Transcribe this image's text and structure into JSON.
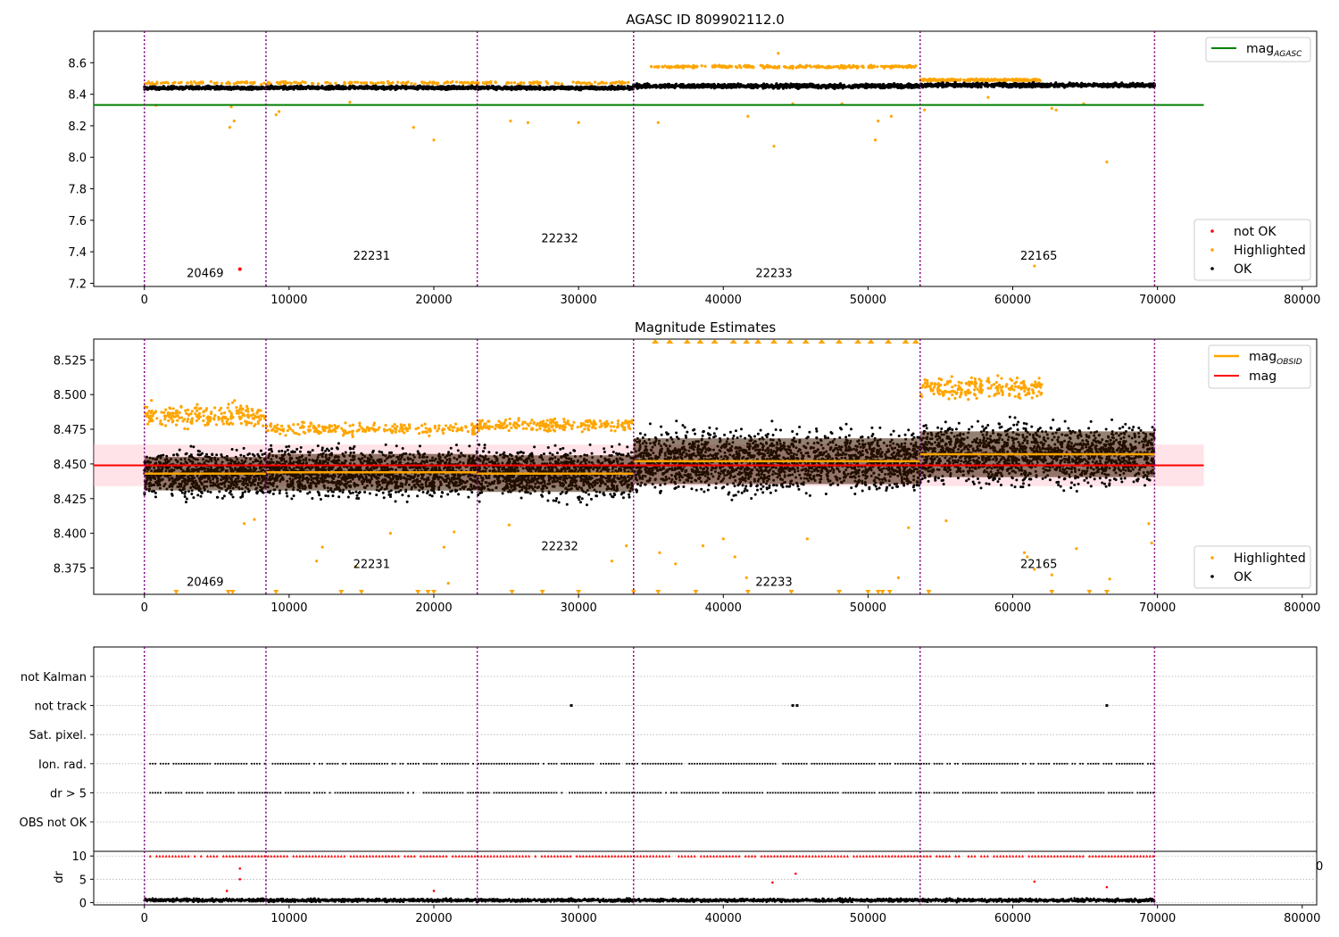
{
  "colors": {
    "ok": "#000000",
    "highlighted": "#FFA500",
    "not_ok": "#FF0000",
    "agasc_line": "#008000",
    "mag_line": "#FF0000",
    "obsid_line": "#FFA500",
    "obs_boundary": "#800080",
    "band_fill": "#FFC0CB",
    "grid": "#B0B0B0"
  },
  "chart_data": [
    {
      "type": "scatter",
      "title": "AGASC ID 809902112.0",
      "xlim": [
        -3500,
        81000
      ],
      "ylim": [
        7.18,
        8.8
      ],
      "xticks": [
        0,
        10000,
        20000,
        30000,
        40000,
        50000,
        60000,
        70000,
        80000
      ],
      "yticks": [
        7.2,
        7.4,
        7.6,
        7.8,
        8.0,
        8.2,
        8.4,
        8.6
      ],
      "ytick_labels": [
        "7.2",
        "7.4",
        "7.6",
        "7.8",
        "8.0",
        "8.2",
        "8.4",
        "8.6"
      ],
      "lines": [
        {
          "name": "mag",
          "subscript": "AGASC",
          "y": 8.332,
          "x_range": [
            -3500,
            73200
          ],
          "color_key": "agasc_line"
        }
      ],
      "legend_lines": [
        "mag_AGASC"
      ],
      "legend_points": [
        "not OK",
        "Highlighted",
        "OK"
      ],
      "obs_boundaries": [
        0,
        8400,
        23000,
        33800,
        53600,
        69800
      ],
      "obsids": [
        {
          "label": "20469",
          "x": 4200,
          "y": 7.24
        },
        {
          "label": "22231",
          "x": 15700,
          "y": 7.35
        },
        {
          "label": "22232",
          "x": 28700,
          "y": 7.46
        },
        {
          "label": "22233",
          "x": 43500,
          "y": 7.24
        },
        {
          "label": "22165",
          "x": 61800,
          "y": 7.35
        }
      ],
      "series": [
        {
          "name": "OK",
          "segments": [
            {
              "x": [
                0,
                8400
              ],
              "center": 8.44,
              "spread": 0.015
            },
            {
              "x": [
                8400,
                23000
              ],
              "center": 8.442,
              "spread": 0.015
            },
            {
              "x": [
                23000,
                33800
              ],
              "center": 8.44,
              "spread": 0.015
            },
            {
              "x": [
                33800,
                53600
              ],
              "center": 8.452,
              "spread": 0.018
            },
            {
              "x": [
                53600,
                69800
              ],
              "center": 8.458,
              "spread": 0.018
            }
          ]
        },
        {
          "name": "Highlighted",
          "bands": [
            {
              "x": [
                0,
                33800
              ],
              "y": 8.472,
              "spread": 0.012
            },
            {
              "x": [
                34700,
                53400
              ],
              "y": 8.575,
              "spread": 0.012
            },
            {
              "x": [
                53600,
                62000
              ],
              "y": 8.49,
              "spread": 0.01
            }
          ],
          "points": [
            [
              5900,
              8.19
            ],
            [
              6200,
              8.23
            ],
            [
              6000,
              8.32
            ],
            [
              9100,
              8.27
            ],
            [
              9300,
              8.29
            ],
            [
              14200,
              8.35
            ],
            [
              18600,
              8.19
            ],
            [
              20000,
              8.11
            ],
            [
              25300,
              8.23
            ],
            [
              26500,
              8.22
            ],
            [
              30000,
              8.22
            ],
            [
              35500,
              8.22
            ],
            [
              41700,
              8.26
            ],
            [
              43500,
              8.07
            ],
            [
              44800,
              8.34
            ],
            [
              48200,
              8.34
            ],
            [
              50500,
              8.11
            ],
            [
              50700,
              8.23
            ],
            [
              51600,
              8.26
            ],
            [
              43800,
              8.66
            ],
            [
              53900,
              8.3
            ],
            [
              58300,
              8.38
            ],
            [
              61500,
              7.31
            ],
            [
              62700,
              8.31
            ],
            [
              63000,
              8.3
            ],
            [
              64900,
              8.34
            ],
            [
              66500,
              7.97
            ],
            [
              800,
              8.33
            ]
          ]
        },
        {
          "name": "not OK",
          "points": [
            [
              6600,
              7.29
            ]
          ]
        }
      ]
    },
    {
      "type": "scatter",
      "title": "Magnitude Estimates",
      "xlim": [
        -3500,
        81000
      ],
      "ylim": [
        8.356,
        8.54
      ],
      "xticks": [
        0,
        10000,
        20000,
        30000,
        40000,
        50000,
        60000,
        70000,
        80000
      ],
      "yticks": [
        8.375,
        8.4,
        8.425,
        8.45,
        8.475,
        8.5,
        8.525
      ],
      "ytick_labels": [
        "8.375",
        "8.400",
        "8.425",
        "8.450",
        "8.475",
        "8.500",
        "8.525"
      ],
      "mag": {
        "value": 8.449,
        "band": [
          8.434,
          8.464
        ],
        "x_range": [
          -3500,
          73200
        ]
      },
      "mag_obsid": [
        {
          "x": [
            0,
            8400
          ],
          "value": 8.443
        },
        {
          "x": [
            8400,
            23000
          ],
          "value": 8.444
        },
        {
          "x": [
            23000,
            33800
          ],
          "value": 8.443
        },
        {
          "x": [
            33800,
            53600
          ],
          "value": 8.452
        },
        {
          "x": [
            53600,
            69800
          ],
          "value": 8.457
        }
      ],
      "legend_lines": [
        "mag_OBSID",
        "mag"
      ],
      "legend_points": [
        "Highlighted",
        "OK"
      ],
      "obs_boundaries": [
        0,
        8400,
        23000,
        33800,
        53600,
        69800
      ],
      "obsids": [
        {
          "label": "20469",
          "x": 4200,
          "y": 8.362
        },
        {
          "label": "22231",
          "x": 15700,
          "y": 8.375
        },
        {
          "label": "22232",
          "x": 28700,
          "y": 8.388
        },
        {
          "label": "22233",
          "x": 43500,
          "y": 8.362
        },
        {
          "label": "22165",
          "x": 61800,
          "y": 8.375
        }
      ],
      "series": [
        {
          "name": "OK",
          "segments": [
            {
              "x": [
                0,
                8400
              ],
              "center": 8.443,
              "spread": 0.022
            },
            {
              "x": [
                8400,
                23000
              ],
              "center": 8.444,
              "spread": 0.024
            },
            {
              "x": [
                23000,
                33800
              ],
              "center": 8.443,
              "spread": 0.024
            },
            {
              "x": [
                33800,
                53600
              ],
              "center": 8.452,
              "spread": 0.03
            },
            {
              "x": [
                53600,
                69800
              ],
              "center": 8.457,
              "spread": 0.03
            }
          ]
        },
        {
          "name": "Highlighted",
          "bands": [
            {
              "x": [
                0,
                8400
              ],
              "y": 8.485,
              "spread": 0.012
            },
            {
              "x": [
                8400,
                23000
              ],
              "y": 8.475,
              "spread": 0.006
            },
            {
              "x": [
                23000,
                33800
              ],
              "y": 8.478,
              "spread": 0.006
            },
            {
              "x": [
                53600,
                62000
              ],
              "y": 8.505,
              "spread": 0.012
            }
          ],
          "upper_markers_x": [
            35300,
            36300,
            37500,
            38400,
            39400,
            40700,
            41600,
            42400,
            43500,
            44600,
            45700,
            46800,
            48000,
            49300,
            50200,
            51400,
            52600,
            53300
          ],
          "lower_markers_x": [
            2200,
            5800,
            6100,
            9100,
            13600,
            15000,
            18900,
            19600,
            20000,
            25400,
            27500,
            30000,
            33800,
            35500,
            38100,
            41700,
            44700,
            48000,
            50000,
            50700,
            51000,
            51500,
            54200,
            62700,
            65300,
            66500
          ],
          "points": [
            [
              17000,
              8.4
            ],
            [
              11900,
              8.38
            ],
            [
              12300,
              8.39
            ],
            [
              14600,
              8.376
            ],
            [
              20700,
              8.39
            ],
            [
              21000,
              8.364
            ],
            [
              21400,
              8.401
            ],
            [
              25200,
              8.406
            ],
            [
              32300,
              8.38
            ],
            [
              33300,
              8.391
            ],
            [
              35600,
              8.386
            ],
            [
              36700,
              8.378
            ],
            [
              38600,
              8.391
            ],
            [
              40000,
              8.396
            ],
            [
              40800,
              8.383
            ],
            [
              41600,
              8.368
            ],
            [
              45800,
              8.396
            ],
            [
              52100,
              8.368
            ],
            [
              52800,
              8.404
            ],
            [
              55400,
              8.409
            ],
            [
              60800,
              8.386
            ],
            [
              61000,
              8.383
            ],
            [
              61500,
              8.374
            ],
            [
              62700,
              8.37
            ],
            [
              64400,
              8.389
            ],
            [
              66700,
              8.367
            ],
            [
              69600,
              8.393
            ],
            [
              69400,
              8.407
            ],
            [
              6900,
              8.407
            ],
            [
              7600,
              8.41
            ]
          ]
        }
      ]
    },
    {
      "type": "scatter",
      "title": "",
      "xlim": [
        -3500,
        81000
      ],
      "categories": [
        "not Kalman",
        "not track",
        "Sat. pixel.",
        "Ion. rad.",
        "dr > 5",
        "OBS not OK"
      ],
      "obs_boundaries": [
        0,
        8400,
        23000,
        33800,
        53600,
        69800
      ],
      "series": [
        {
          "name": "not track",
          "x": [
            29500,
            44800,
            45100,
            66500
          ]
        },
        {
          "name": "Ion. rad.",
          "x_range": [
            400,
            69800
          ]
        },
        {
          "name": "dr > 5",
          "x_range": [
            400,
            69800
          ]
        }
      ],
      "overflow_label": "0"
    },
    {
      "type": "scatter",
      "title": "",
      "ylabel": "dr",
      "xlim": [
        -3500,
        81000
      ],
      "ylim": [
        -0.5,
        11
      ],
      "xticks": [
        0,
        10000,
        20000,
        30000,
        40000,
        50000,
        60000,
        70000,
        80000
      ],
      "yticks": [
        0,
        5,
        10
      ],
      "ytick_labels": [
        "0",
        "5",
        "10"
      ],
      "obs_boundaries": [
        0,
        8400,
        23000,
        33800,
        53600,
        69800
      ],
      "series": [
        {
          "name": "dr",
          "x_range": [
            0,
            69800
          ],
          "center": 0.5,
          "spread": 0.5
        },
        {
          "name": "dr capped",
          "x_range": [
            400,
            69800
          ],
          "y": 10
        },
        {
          "name": "dr outliers",
          "points": [
            [
              6600,
              7.3
            ],
            [
              6600,
              5.0
            ],
            [
              5700,
              2.5
            ],
            [
              20000,
              2.5
            ],
            [
              43400,
              4.3
            ],
            [
              45000,
              6.2
            ],
            [
              61500,
              4.5
            ],
            [
              66500,
              3.3
            ]
          ]
        }
      ]
    }
  ]
}
